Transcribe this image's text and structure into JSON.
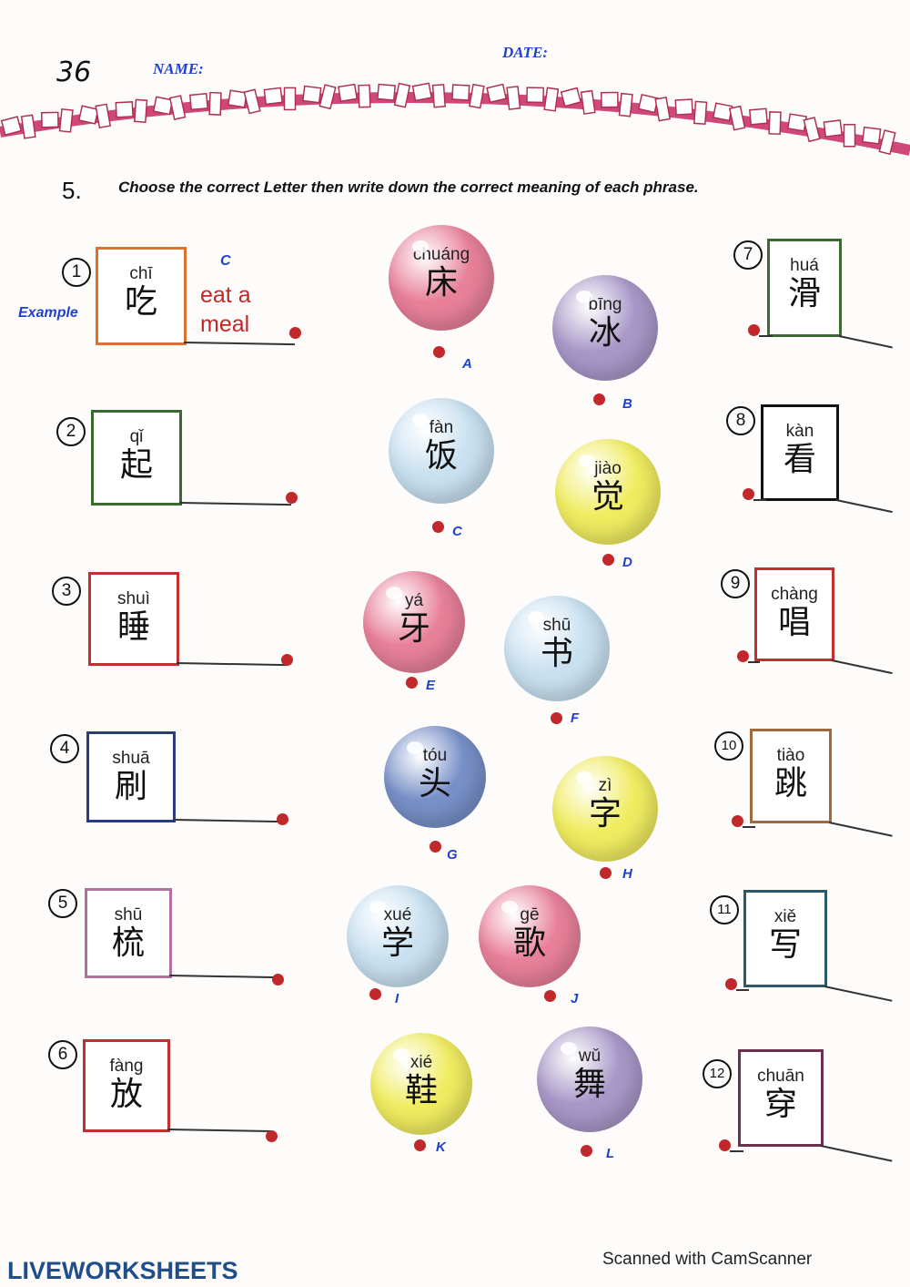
{
  "header": {
    "page_number": "36",
    "name_label": "NAME:",
    "date_label": "DATE:"
  },
  "exercise": {
    "number": "5.",
    "instruction": "Choose the correct Letter then write down the correct meaning of each phrase."
  },
  "example": {
    "label": "Example",
    "letter": "C",
    "meaning": "eat a meal"
  },
  "left_items": [
    {
      "num": "1",
      "pinyin": "chī",
      "char": "吃",
      "color": "#e07030"
    },
    {
      "num": "2",
      "pinyin": "qǐ",
      "char": "起",
      "color": "#3a6a30"
    },
    {
      "num": "3",
      "pinyin": "shuì",
      "char": "睡",
      "color": "#c03030"
    },
    {
      "num": "4",
      "pinyin": "shuā",
      "char": "刷",
      "color": "#2a3a8a"
    },
    {
      "num": "5",
      "pinyin": "shū",
      "char": "梳",
      "color": "#b070a0"
    },
    {
      "num": "6",
      "pinyin": "fàng",
      "char": "放",
      "color": "#c03030"
    }
  ],
  "right_items": [
    {
      "num": "7",
      "pinyin": "huá",
      "char": "滑",
      "color": "#3a6a30"
    },
    {
      "num": "8",
      "pinyin": "kàn",
      "char": "看",
      "color": "#111111"
    },
    {
      "num": "9",
      "pinyin": "chàng",
      "char": "唱",
      "color": "#c03030"
    },
    {
      "num": "10",
      "pinyin": "tiào",
      "char": "跳",
      "color": "#a06a40"
    },
    {
      "num": "11",
      "pinyin": "xiě",
      "char": "写",
      "color": "#2a5a6a"
    },
    {
      "num": "12",
      "pinyin": "chuān",
      "char": "穿",
      "color": "#6a3050"
    }
  ],
  "bubbles": [
    {
      "letter": "A",
      "pinyin": "chuáng",
      "char": "床",
      "color": "#e8809a"
    },
    {
      "letter": "B",
      "pinyin": "bīng",
      "char": "冰",
      "color": "#a898c8"
    },
    {
      "letter": "C",
      "pinyin": "fàn",
      "char": "饭",
      "color": "#c8e0f0"
    },
    {
      "letter": "D",
      "pinyin": "jiào",
      "char": "觉",
      "color": "#f0ec60"
    },
    {
      "letter": "E",
      "pinyin": "yá",
      "char": "牙",
      "color": "#e8809a"
    },
    {
      "letter": "F",
      "pinyin": "shū",
      "char": "书",
      "color": "#c8e0f0"
    },
    {
      "letter": "G",
      "pinyin": "tóu",
      "char": "头",
      "color": "#7890c8"
    },
    {
      "letter": "H",
      "pinyin": "zì",
      "char": "字",
      "color": "#f0ec60"
    },
    {
      "letter": "I",
      "pinyin": "xué",
      "char": "学",
      "color": "#c8e0f0"
    },
    {
      "letter": "J",
      "pinyin": "gē",
      "char": "歌",
      "color": "#e8809a"
    },
    {
      "letter": "K",
      "pinyin": "xié",
      "char": "鞋",
      "color": "#f0ec60"
    },
    {
      "letter": "L",
      "pinyin": "wǔ",
      "char": "舞",
      "color": "#a898c8"
    }
  ],
  "footer": {
    "brand": "LIVEWORKSHEETS",
    "scanner": "Scanned with CamScanner"
  }
}
